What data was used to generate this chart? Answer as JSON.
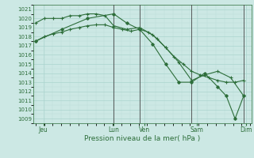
{
  "title": "Pression niveau de la mer( hPa )",
  "ylim": [
    1008.5,
    1021.5
  ],
  "yticks": [
    1009,
    1010,
    1011,
    1012,
    1013,
    1014,
    1015,
    1016,
    1017,
    1018,
    1019,
    1020,
    1021
  ],
  "xlim": [
    -0.1,
    8.3
  ],
  "bg_color": "#cce8e4",
  "grid_major_color": "#aad4ce",
  "grid_minor_color": "#bcdeda",
  "line_color": "#2d6e3a",
  "tick_label_color": "#2d6e3a",
  "vline_color": "#444444",
  "xlabel_color": "#2d6e3a",
  "xtick_labels": [
    "Jeu",
    "",
    "Lun",
    "Ven",
    "",
    "Sam",
    "",
    "Dim"
  ],
  "xtick_positions": [
    0,
    1.5,
    3,
    4,
    5,
    6,
    7,
    8
  ],
  "xtick_display": [
    "Jeu",
    "Lun",
    "Ven",
    "Sam",
    "Dim"
  ],
  "xtick_display_pos": [
    0.3,
    3.0,
    4.2,
    6.2,
    8.1
  ],
  "line1_x": [
    0,
    0.33,
    0.67,
    1.0,
    1.33,
    1.67,
    2.0,
    2.33,
    2.67,
    3.0,
    3.33,
    3.67,
    4.0,
    4.33,
    4.67,
    5.0,
    5.33,
    5.67,
    6.0,
    6.33,
    6.67,
    7.0,
    7.33,
    7.67,
    8.0
  ],
  "line1_y": [
    1017.5,
    1018.0,
    1018.3,
    1018.5,
    1018.8,
    1019.0,
    1019.2,
    1019.3,
    1019.3,
    1019.0,
    1018.8,
    1018.6,
    1018.8,
    1018.5,
    1017.8,
    1016.8,
    1015.8,
    1015.0,
    1014.2,
    1013.8,
    1013.5,
    1013.2,
    1013.0,
    1013.0,
    1013.2
  ],
  "line2_x": [
    0,
    0.33,
    0.67,
    1.0,
    1.33,
    1.67,
    2.0,
    2.33,
    2.67,
    3.0,
    3.5,
    4.0,
    4.5,
    5.0,
    5.5,
    6.0,
    6.5,
    7.0,
    7.5,
    8.0
  ],
  "line2_y": [
    1019.5,
    1020.0,
    1020.0,
    1020.0,
    1020.3,
    1020.3,
    1020.5,
    1020.5,
    1020.3,
    1019.2,
    1018.8,
    1019.0,
    1018.2,
    1016.8,
    1015.2,
    1013.2,
    1013.8,
    1014.2,
    1013.5,
    1011.5
  ],
  "line3_x": [
    0,
    1,
    2,
    3,
    3.5,
    4,
    4.5,
    5,
    5.5,
    6,
    6.5,
    7,
    7.33,
    7.67,
    8
  ],
  "line3_y": [
    1017.5,
    1018.8,
    1020.0,
    1020.5,
    1019.5,
    1018.8,
    1017.2,
    1015.0,
    1013.0,
    1013.0,
    1014.0,
    1012.5,
    1011.5,
    1009.0,
    1011.5
  ],
  "vline_positions": [
    3.0,
    4.0,
    6.0,
    8.0
  ],
  "figsize": [
    3.2,
    2.0
  ],
  "dpi": 100
}
